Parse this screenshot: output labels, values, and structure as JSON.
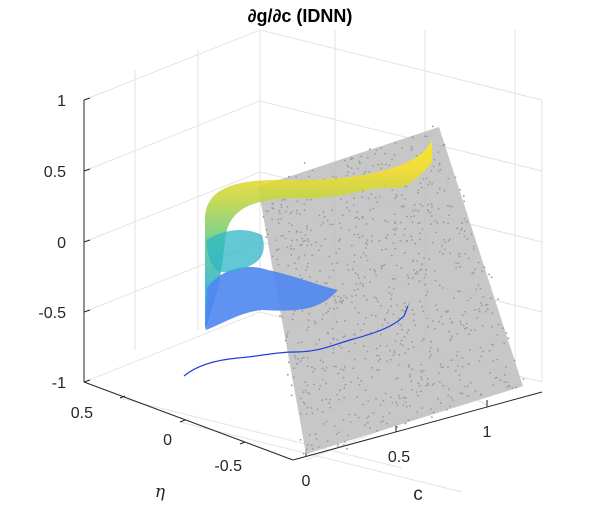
{
  "chart_data": {
    "type": "scatter",
    "title": "∂g/∂c (IDNN)",
    "xlabel": "c",
    "ylabel": "η",
    "zlabel": "",
    "xlim": [
      0,
      1.5
    ],
    "ylim": [
      -0.75,
      0.75
    ],
    "zlim": [
      -1,
      1
    ],
    "xticks": [
      "0",
      "0.5",
      "1"
    ],
    "yticks": [
      "0.5",
      "0",
      "-0.5"
    ],
    "zticks": [
      "1",
      "0.5",
      "0",
      "-0.5",
      "-1"
    ],
    "grid": true,
    "series": [
      {
        "kind": "scatter",
        "color": "#aaaaaa",
        "points": [
          {
            "x": 0.0,
            "y": 0.0,
            "z": -0.98
          },
          {
            "x": 0.0,
            "y": 0.4,
            "z": 0.78
          },
          {
            "x": 1.0,
            "y": 0.4,
            "z": 0.85
          },
          {
            "x": 1.0,
            "y": -0.3,
            "z": -0.75
          }
        ]
      },
      {
        "kind": "surface",
        "colormap": "parula",
        "colors": [
          "#3e76f0",
          "#2ab2d6",
          "#5fcb8e",
          "#c8d63f",
          "#f8de2d",
          "#f4ee1c"
        ]
      },
      {
        "kind": "line",
        "color": "#1f3fe0",
        "points": [
          {
            "x": 0.0,
            "y": 0.0,
            "z": -0.9
          },
          {
            "x": 0.25,
            "y": 0.0,
            "z": -0.82
          },
          {
            "x": 0.5,
            "y": 0.0,
            "z": -0.78
          },
          {
            "x": 0.75,
            "y": 0.0,
            "z": -0.8
          },
          {
            "x": 1.0,
            "y": 0.0,
            "z": -0.62
          }
        ]
      }
    ]
  }
}
